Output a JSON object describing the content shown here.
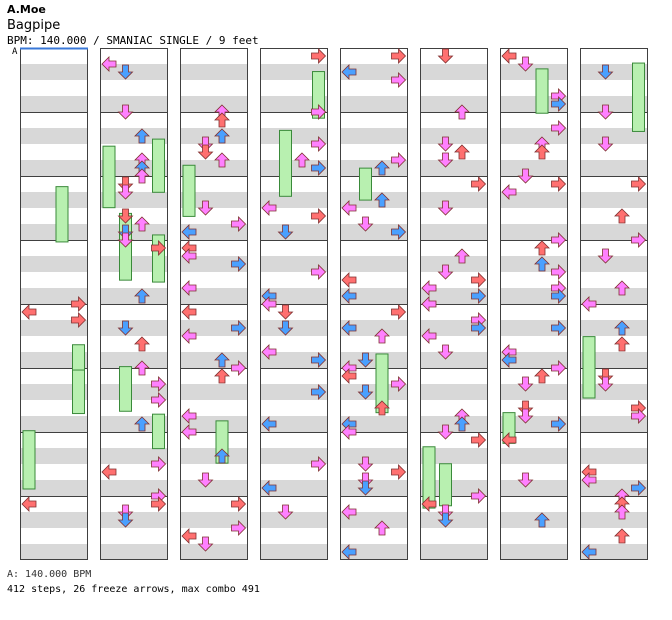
{
  "header": {
    "artist": "A.Moe",
    "title": "Bagpipe",
    "meta": "BPM: 140.000 / SMANIAC SINGLE / 9 feet"
  },
  "bpm_marker": "A",
  "footer": {
    "bpm_line": "A: 140.000 BPM",
    "stats_line": "412 steps, 26 freeze arrows, max combo 491"
  },
  "colors": {
    "quarter": "#ff7070",
    "eighth": "#4aa0ff",
    "sixteenth": "#ff80ff",
    "freeze": "#b8f0b0",
    "stripe": "#d8d8d8",
    "bpm_line": "#3a78d8"
  },
  "icons": [
    "left-arrow-icon",
    "down-arrow-icon",
    "up-arrow-icon",
    "right-arrow-icon",
    "freeze-arrow-icon"
  ]
}
